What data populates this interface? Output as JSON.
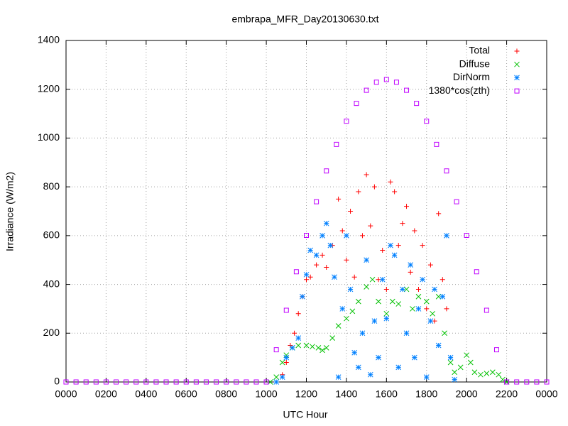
{
  "chart_data": {
    "type": "scatter",
    "title": "embrapa_MFR_Day20130630.txt",
    "xlabel": "UTC Hour",
    "ylabel": "Irradiance (W/m2)",
    "xlim": [
      0,
      24
    ],
    "ylim": [
      0,
      1400
    ],
    "xticks": [
      {
        "value": 0,
        "label": "0000"
      },
      {
        "value": 2,
        "label": "0200"
      },
      {
        "value": 4,
        "label": "0400"
      },
      {
        "value": 6,
        "label": "0600"
      },
      {
        "value": 8,
        "label": "0800"
      },
      {
        "value": 10,
        "label": "1000"
      },
      {
        "value": 12,
        "label": "1200"
      },
      {
        "value": 14,
        "label": "1400"
      },
      {
        "value": 16,
        "label": "1600"
      },
      {
        "value": 18,
        "label": "1800"
      },
      {
        "value": 20,
        "label": "2000"
      },
      {
        "value": 22,
        "label": "2200"
      },
      {
        "value": 24,
        "label": "0000"
      }
    ],
    "yticks": [
      0,
      200,
      400,
      600,
      800,
      1000,
      1200,
      1400
    ],
    "grid": true,
    "legend": "top-right",
    "series": [
      {
        "name": "Total",
        "color": "#ff0000",
        "marker": "plus",
        "x": [
          10.8,
          11.0,
          11.2,
          11.4,
          11.6,
          11.8,
          12.0,
          12.2,
          12.5,
          12.8,
          13.0,
          13.3,
          13.6,
          13.8,
          14.0,
          14.2,
          14.4,
          14.6,
          14.8,
          15.0,
          15.2,
          15.4,
          15.6,
          15.8,
          16.0,
          16.2,
          16.4,
          16.6,
          16.8,
          17.0,
          17.2,
          17.4,
          17.6,
          17.8,
          18.0,
          18.2,
          18.4,
          18.6,
          18.8,
          19.0
        ],
        "values": [
          30,
          80,
          150,
          200,
          280,
          350,
          420,
          430,
          480,
          520,
          470,
          560,
          750,
          620,
          500,
          700,
          430,
          780,
          600,
          850,
          640,
          800,
          420,
          540,
          380,
          820,
          780,
          560,
          650,
          720,
          450,
          620,
          380,
          560,
          300,
          480,
          250,
          690,
          420,
          300
        ]
      },
      {
        "name": "Diffuse",
        "color": "#00c000",
        "marker": "cross",
        "x": [
          10.2,
          10.5,
          10.8,
          11.0,
          11.3,
          11.6,
          12.0,
          12.3,
          12.6,
          12.8,
          13.0,
          13.3,
          13.6,
          14.0,
          14.3,
          14.6,
          15.0,
          15.3,
          15.6,
          16.0,
          16.3,
          16.6,
          17.0,
          17.3,
          17.6,
          18.0,
          18.3,
          18.6,
          18.9,
          19.2,
          19.4,
          19.7,
          20.0,
          20.2,
          20.4,
          20.7,
          21.0,
          21.3,
          21.6,
          21.8,
          22.0
        ],
        "values": [
          0,
          20,
          80,
          110,
          140,
          150,
          150,
          145,
          140,
          130,
          140,
          180,
          230,
          260,
          290,
          330,
          390,
          420,
          330,
          280,
          330,
          320,
          380,
          300,
          350,
          330,
          280,
          350,
          200,
          80,
          40,
          60,
          110,
          80,
          40,
          30,
          35,
          40,
          30,
          10,
          0
        ]
      },
      {
        "name": "DirNorm",
        "color": "#0080ff",
        "marker": "star",
        "x": [
          10.5,
          10.8,
          11.0,
          11.3,
          11.6,
          11.8,
          12.0,
          12.2,
          12.5,
          12.8,
          13.0,
          13.2,
          13.4,
          13.6,
          13.8,
          14.0,
          14.2,
          14.4,
          14.6,
          14.8,
          15.0,
          15.2,
          15.4,
          15.6,
          15.8,
          16.0,
          16.2,
          16.4,
          16.6,
          16.8,
          17.0,
          17.2,
          17.4,
          17.6,
          17.8,
          18.0,
          18.2,
          18.4,
          18.6,
          18.8,
          19.0,
          19.2,
          19.4
        ],
        "values": [
          0,
          20,
          100,
          140,
          180,
          350,
          440,
          540,
          520,
          600,
          650,
          560,
          430,
          20,
          300,
          600,
          380,
          120,
          60,
          200,
          500,
          30,
          250,
          100,
          420,
          260,
          560,
          520,
          60,
          380,
          200,
          480,
          100,
          300,
          420,
          20,
          250,
          380,
          150,
          350,
          600,
          100,
          10
        ]
      },
      {
        "name": "1380*cos(zth)",
        "color": "#c000ff",
        "marker": "square",
        "x": [
          0,
          0.5,
          1,
          1.5,
          2,
          2.5,
          3,
          3.5,
          4,
          4.5,
          5,
          5.5,
          6,
          6.5,
          7,
          7.5,
          8,
          8.5,
          9,
          9.5,
          10,
          10.5,
          11,
          11.5,
          12,
          12.5,
          13,
          13.5,
          14,
          14.5,
          15,
          15.5,
          16,
          16.5,
          17,
          17.5,
          18,
          18.5,
          19,
          19.5,
          20,
          20.5,
          21,
          21.5,
          22,
          22.5,
          23,
          23.5,
          24
        ],
        "values": [
          0,
          0,
          0,
          0,
          0,
          0,
          0,
          0,
          0,
          0,
          0,
          0,
          0,
          0,
          0,
          0,
          0,
          0,
          0,
          0,
          0,
          132,
          294,
          452,
          601,
          739,
          865,
          974,
          1069,
          1142,
          1196,
          1229,
          1240,
          1229,
          1196,
          1142,
          1069,
          974,
          865,
          739,
          601,
          452,
          294,
          132,
          0,
          0,
          0,
          0,
          0
        ]
      }
    ]
  }
}
